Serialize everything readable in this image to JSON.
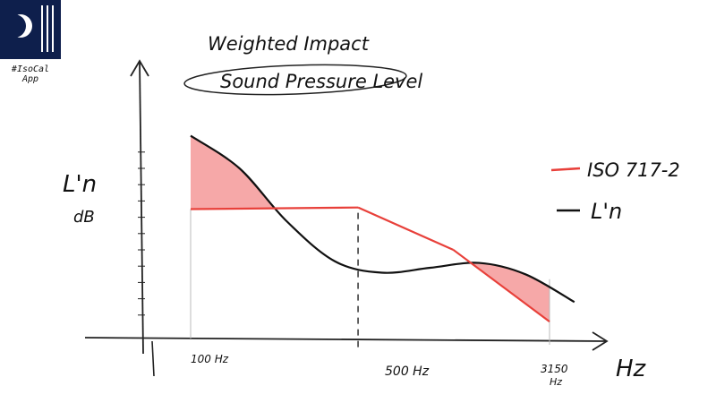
{
  "brand": {
    "logo_icon": "moon-and-bars-logo",
    "logo_color": "#0e1f4c",
    "hashtag_line1": "#IsoCal",
    "hashtag_line2": "App"
  },
  "chart_data": {
    "type": "line",
    "title_line1": "Weighted Impact",
    "title_line2": "Sound Pressure Level",
    "ylabel_line1": "L'n",
    "ylabel_line2": "dB",
    "xlabel": "Hz",
    "x_scale": "log",
    "xlim": [
      65,
      5000
    ],
    "ylim": [
      0,
      12
    ],
    "tick_labels": [
      {
        "x": 100,
        "label": "100 Hz"
      },
      {
        "x": 500,
        "label": "500 Hz"
      },
      {
        "x": 3150,
        "label_line1": "3150",
        "label_line2": "Hz"
      }
    ],
    "series": [
      {
        "name": "ISO 717-2",
        "color": "#e8403a",
        "points": [
          [
            100,
            7.5
          ],
          [
            500,
            7.6
          ],
          [
            1250,
            5.0
          ],
          [
            3150,
            0.6
          ]
        ]
      },
      {
        "name": "L'n",
        "color": "#111111",
        "points": [
          [
            100,
            12.0
          ],
          [
            160,
            10.0
          ],
          [
            250,
            6.8
          ],
          [
            400,
            4.3
          ],
          [
            630,
            3.6
          ],
          [
            1000,
            3.9
          ],
          [
            1600,
            4.2
          ],
          [
            2500,
            3.5
          ],
          [
            4000,
            1.8
          ]
        ]
      }
    ],
    "shaded_regions_color": "#f6a8a8",
    "legend_position": "right",
    "grid": false
  }
}
